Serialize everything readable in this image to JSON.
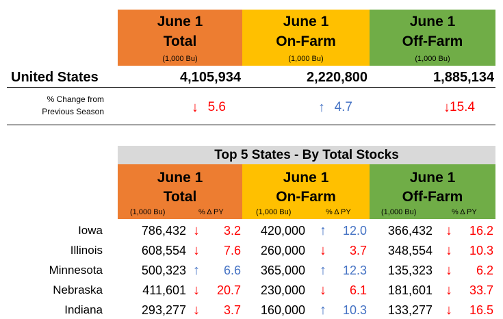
{
  "top_headers": [
    {
      "line1": "June 1",
      "line2": "Total",
      "unit": "(1,000 Bu)",
      "color": "#ed7d31"
    },
    {
      "line1": "June 1",
      "line2": "On-Farm",
      "unit": "(1,000 Bu)",
      "color": "#ffc000"
    },
    {
      "line1": "June 1",
      "line2": "Off-Farm",
      "unit": "(1,000 Bu)",
      "color": "#70ad47"
    }
  ],
  "us": {
    "label": "United States",
    "values": [
      "4,105,934",
      "2,220,800",
      "1,885,134"
    ],
    "change_label_1": "% Change from",
    "change_label_2": "Previous Season",
    "changes": [
      {
        "dir": "down",
        "arrow": "↓",
        "value": "5.6"
      },
      {
        "dir": "up",
        "arrow": "↑",
        "value": "4.7"
      },
      {
        "dir": "down",
        "arrow": "↓",
        "value": "15.4"
      }
    ]
  },
  "top5": {
    "title": "Top 5 States - By Total Stocks",
    "headers": [
      {
        "line1": "June 1",
        "line2": "Total",
        "unit": "(1,000 Bu)",
        "pct": "% Δ PY"
      },
      {
        "line1": "June 1",
        "line2": "On-Farm",
        "unit": "(1,000 Bu)",
        "pct": "% Δ PY"
      },
      {
        "line1": "June 1",
        "line2": "Off-Farm",
        "unit": "(1,000 Bu)",
        "pct": "% Δ PY"
      }
    ],
    "rows": [
      {
        "state": "Iowa",
        "cells": [
          {
            "v": "786,432",
            "dir": "down",
            "arrow": "↓",
            "p": "3.2"
          },
          {
            "v": "420,000",
            "dir": "up",
            "arrow": "↑",
            "p": "12.0"
          },
          {
            "v": "366,432",
            "dir": "down",
            "arrow": "↓",
            "p": "16.2"
          }
        ]
      },
      {
        "state": "Illinois",
        "cells": [
          {
            "v": "608,554",
            "dir": "down",
            "arrow": "↓",
            "p": "7.6"
          },
          {
            "v": "260,000",
            "dir": "down",
            "arrow": "↓",
            "p": "3.7"
          },
          {
            "v": "348,554",
            "dir": "down",
            "arrow": "↓",
            "p": "10.3"
          }
        ]
      },
      {
        "state": "Minnesota",
        "cells": [
          {
            "v": "500,323",
            "dir": "up",
            "arrow": "↑",
            "p": "6.6"
          },
          {
            "v": "365,000",
            "dir": "up",
            "arrow": "↑",
            "p": "12.3"
          },
          {
            "v": "135,323",
            "dir": "down",
            "arrow": "↓",
            "p": "6.2"
          }
        ]
      },
      {
        "state": "Nebraska",
        "cells": [
          {
            "v": "411,601",
            "dir": "down",
            "arrow": "↓",
            "p": "20.7"
          },
          {
            "v": "230,000",
            "dir": "down",
            "arrow": "↓",
            "p": "6.1"
          },
          {
            "v": "181,601",
            "dir": "down",
            "arrow": "↓",
            "p": "33.7"
          }
        ]
      },
      {
        "state": "Indiana",
        "cells": [
          {
            "v": "293,277",
            "dir": "down",
            "arrow": "↓",
            "p": "3.7"
          },
          {
            "v": "160,000",
            "dir": "up",
            "arrow": "↑",
            "p": "10.3"
          },
          {
            "v": "133,277",
            "dir": "down",
            "arrow": "↓",
            "p": "16.5"
          }
        ]
      }
    ]
  }
}
